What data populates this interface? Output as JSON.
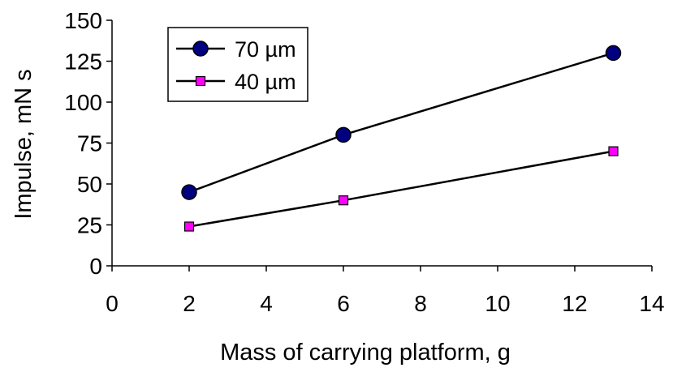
{
  "chart_data": {
    "type": "line",
    "title": "",
    "xlabel": "Mass of carrying platform, g",
    "ylabel": "Impulse, mN s",
    "xlim": [
      0,
      14
    ],
    "ylim": [
      0,
      150
    ],
    "xticks": [
      0,
      2,
      4,
      6,
      8,
      10,
      12,
      14
    ],
    "yticks": [
      0,
      25,
      50,
      75,
      100,
      125,
      150
    ],
    "grid": false,
    "legend_position": "top-left",
    "series": [
      {
        "name": "70 µm",
        "marker": "circle",
        "marker_color": "#000080",
        "line_color": "#000000",
        "x": [
          2,
          6,
          13
        ],
        "y": [
          45,
          80,
          130
        ]
      },
      {
        "name": "40 µm",
        "marker": "square",
        "marker_color": "#ff00ff",
        "line_color": "#000000",
        "x": [
          2,
          6,
          13
        ],
        "y": [
          24,
          40,
          70
        ]
      }
    ]
  }
}
